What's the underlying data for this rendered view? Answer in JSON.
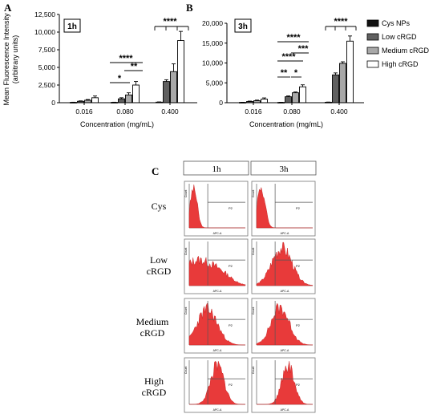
{
  "panels": {
    "A": {
      "letter": "A",
      "time": "1h",
      "ylabel_line1": "Mean Fluorescence Intensity",
      "ylabel_line2": "(arbitrary units)",
      "xlabel": "Concentration (mg/mL)"
    },
    "B": {
      "letter": "B",
      "time": "3h",
      "xlabel": "Concentration (mg/mL)"
    },
    "C": {
      "letter": "C",
      "columns": [
        "1h",
        "3h"
      ],
      "rows": [
        {
          "line1": "Cys",
          "line2": ""
        },
        {
          "line1": "Low",
          "line2": "cRGD"
        },
        {
          "line1": "Medium",
          "line2": "cRGD"
        },
        {
          "line1": "High",
          "line2": "cRGD"
        }
      ],
      "gate_label": "P2",
      "hist_ylabel": "Count",
      "hist_xlabel": "APC-A",
      "hist_color": "#e83a3a"
    }
  },
  "legend": [
    "Cys NPs",
    "Low cRGD",
    "Medium cRGD",
    "High cRGD"
  ],
  "series_colors": [
    "#111111",
    "#606060",
    "#a8a8a8",
    "#ffffff"
  ],
  "chart_data": [
    {
      "type": "bar",
      "panel": "A",
      "title": "1h",
      "xlabel": "Concentration (mg/mL)",
      "ylabel": "Mean Fluorescence Intensity (arbitrary units)",
      "categories": [
        "0.016",
        "0.080",
        "0.400"
      ],
      "ylim": [
        0,
        12500
      ],
      "yticks": [
        "0",
        "2,500",
        "5,000",
        "7,500",
        "10,000",
        "12,500"
      ],
      "series": [
        {
          "name": "Cys NPs",
          "values": [
            50,
            50,
            80
          ],
          "errors": [
            20,
            20,
            30
          ]
        },
        {
          "name": "Low cRGD",
          "values": [
            200,
            550,
            3000
          ],
          "errors": [
            60,
            150,
            250
          ]
        },
        {
          "name": "Medium cRGD",
          "values": [
            350,
            1100,
            4400
          ],
          "errors": [
            100,
            300,
            1100
          ]
        },
        {
          "name": "High cRGD",
          "values": [
            700,
            2500,
            8800
          ],
          "errors": [
            250,
            500,
            1300
          ]
        }
      ],
      "significance": [
        {
          "label": "*",
          "category": "0.080"
        },
        {
          "label": "****",
          "category": "0.080"
        },
        {
          "label": "**",
          "category": "0.080"
        },
        {
          "label": "****",
          "category": "0.400"
        }
      ]
    },
    {
      "type": "bar",
      "panel": "B",
      "title": "3h",
      "xlabel": "Concentration (mg/mL)",
      "categories": [
        "0.016",
        "0.080",
        "0.400"
      ],
      "ylim": [
        0,
        20000
      ],
      "yticks": [
        "0",
        "5,000",
        "10,000",
        "15,000",
        "20,000"
      ],
      "series": [
        {
          "name": "Cys NPs",
          "values": [
            80,
            80,
            120
          ],
          "errors": [
            30,
            30,
            40
          ]
        },
        {
          "name": "Low cRGD",
          "values": [
            300,
            1500,
            7000
          ],
          "errors": [
            100,
            200,
            500
          ]
        },
        {
          "name": "Medium cRGD",
          "values": [
            500,
            2500,
            9900
          ],
          "errors": [
            150,
            200,
            400
          ]
        },
        {
          "name": "High cRGD",
          "values": [
            900,
            4000,
            15500
          ],
          "errors": [
            300,
            500,
            1300
          ]
        }
      ],
      "significance": [
        {
          "label": "**",
          "category": "0.080"
        },
        {
          "label": "*",
          "category": "0.080"
        },
        {
          "label": "****",
          "category": "0.080"
        },
        {
          "label": "***",
          "category": "0.080"
        },
        {
          "label": "****",
          "category": "0.080"
        },
        {
          "label": "****",
          "category": "0.400"
        }
      ]
    }
  ]
}
